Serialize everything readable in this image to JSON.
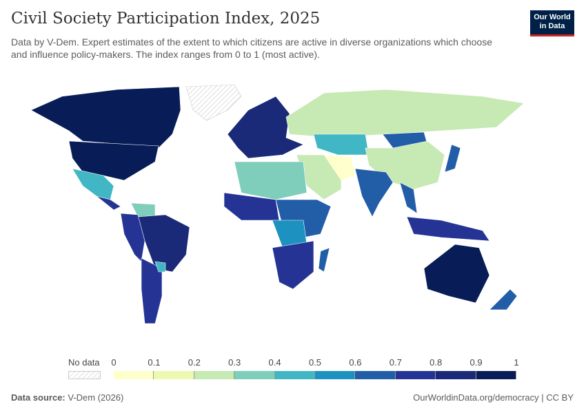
{
  "header": {
    "title": "Civil Society Participation Index, 2025",
    "subtitle": "Data by V-Dem. Expert estimates of the extent to which citizens are active in diverse organizations which choose and influence policy-makers. The index ranges from 0 to 1 (most active).",
    "logo_line1": "Our World",
    "logo_line2": "in Data"
  },
  "legend": {
    "no_data_label": "No data",
    "ticks": [
      "0",
      "0.1",
      "0.2",
      "0.3",
      "0.4",
      "0.5",
      "0.6",
      "0.7",
      "0.8",
      "0.9",
      "1"
    ],
    "colors": [
      "#ffffcc",
      "#edf8b1",
      "#c7e9b4",
      "#7fcdbb",
      "#41b6c4",
      "#1d91c0",
      "#225ea8",
      "#253494",
      "#1a2a78",
      "#081d58"
    ]
  },
  "footer": {
    "source_label": "Data source:",
    "source_value": "V-Dem (2026)",
    "url": "OurWorldinData.org/democracy | CC BY"
  }
}
